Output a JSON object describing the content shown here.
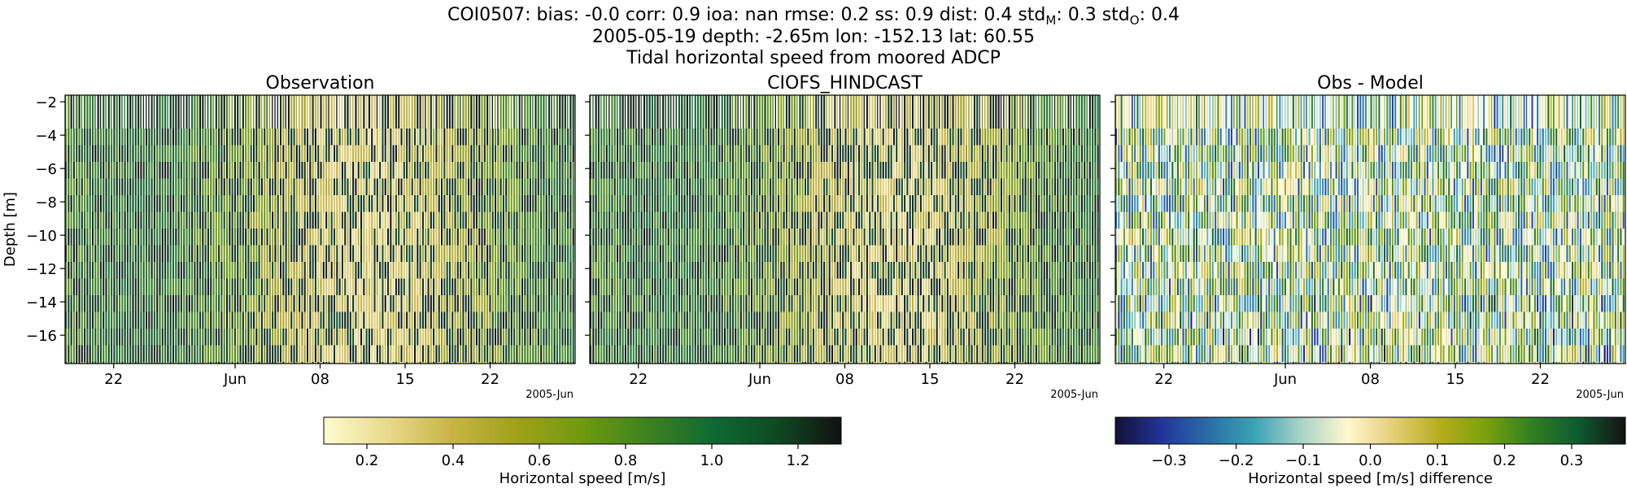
{
  "header": {
    "line1": [
      {
        "t": "COI0507: bias: -0.0  corr: 0.9  ioa: nan  rmse: 0.2  ss: 0.9  dist: 0.4  std"
      },
      {
        "t": "M",
        "sub": true
      },
      {
        "t": ": 0.3  std"
      },
      {
        "t": "O",
        "sub": true
      },
      {
        "t": ": 0.4"
      }
    ],
    "line2": "2005-05-19 depth: -2.65m lon: -152.13 lat: 60.55",
    "line3": "Tidal horizontal speed from moored ADCP"
  },
  "chart_data": [
    {
      "type": "heatmap",
      "title": "Observation",
      "ylabel": "Depth [m]",
      "ylim": [
        -17.7,
        -1.6
      ],
      "yticks": [
        -2,
        -4,
        -6,
        -8,
        -10,
        -12,
        -14,
        -16
      ],
      "xlim": [
        "2005-05-18",
        "2005-06-29"
      ],
      "xticks": [
        {
          "date": "2005-05-22",
          "label": "22"
        },
        {
          "date": "2005-06-01",
          "label": "Jun"
        },
        {
          "date": "2005-06-08",
          "label": "08"
        },
        {
          "date": "2005-06-15",
          "label": "15"
        },
        {
          "date": "2005-06-22",
          "label": "22"
        }
      ],
      "xoffset_label": "2005-Jun",
      "colormap": "speed",
      "value_range": [
        0.1,
        1.3
      ]
    },
    {
      "type": "heatmap",
      "title": "CIOFS_HINDCAST",
      "ylim": [
        -17.7,
        -1.6
      ],
      "yticks": [
        -2,
        -4,
        -6,
        -8,
        -10,
        -12,
        -14,
        -16
      ],
      "xlim": [
        "2005-05-18",
        "2005-06-29"
      ],
      "xticks": [
        {
          "date": "2005-05-22",
          "label": "22"
        },
        {
          "date": "2005-06-01",
          "label": "Jun"
        },
        {
          "date": "2005-06-08",
          "label": "08"
        },
        {
          "date": "2005-06-15",
          "label": "15"
        },
        {
          "date": "2005-06-22",
          "label": "22"
        }
      ],
      "xoffset_label": "2005-Jun",
      "colormap": "speed",
      "value_range": [
        0.1,
        1.3
      ]
    },
    {
      "type": "heatmap",
      "title": "Obs - Model",
      "ylim": [
        -17.7,
        -1.6
      ],
      "yticks": [
        -2,
        -4,
        -6,
        -8,
        -10,
        -12,
        -14,
        -16
      ],
      "xlim": [
        "2005-05-18",
        "2005-06-29"
      ],
      "xticks": [
        {
          "date": "2005-05-22",
          "label": "22"
        },
        {
          "date": "2005-06-01",
          "label": "Jun"
        },
        {
          "date": "2005-06-08",
          "label": "08"
        },
        {
          "date": "2005-06-15",
          "label": "15"
        },
        {
          "date": "2005-06-22",
          "label": "22"
        }
      ],
      "xoffset_label": "2005-Jun",
      "colormap": "difference",
      "value_range": [
        -0.38,
        0.38
      ]
    }
  ],
  "colorbars": [
    {
      "label": "Horizontal speed [m/s]",
      "range": [
        0.1,
        1.3
      ],
      "ticks": [
        {
          "v": 0.2,
          "l": "0.2"
        },
        {
          "v": 0.4,
          "l": "0.4"
        },
        {
          "v": 0.6,
          "l": "0.6"
        },
        {
          "v": 0.8,
          "l": "0.8"
        },
        {
          "v": 1.0,
          "l": "1.0"
        },
        {
          "v": 1.2,
          "l": "1.2"
        }
      ],
      "colormap": "speed"
    },
    {
      "label": "Horizontal speed [m/s] difference",
      "range": [
        -0.38,
        0.38
      ],
      "ticks": [
        {
          "v": -0.3,
          "l": "−0.3"
        },
        {
          "v": -0.2,
          "l": "−0.2"
        },
        {
          "v": -0.1,
          "l": "−0.1"
        },
        {
          "v": 0.0,
          "l": "0.0"
        },
        {
          "v": 0.1,
          "l": "0.1"
        },
        {
          "v": 0.2,
          "l": "0.2"
        },
        {
          "v": 0.3,
          "l": "0.3"
        }
      ],
      "colormap": "difference"
    }
  ],
  "colormaps": {
    "speed": [
      "#fefccf",
      "#e8d98a",
      "#c8b444",
      "#a0a01a",
      "#6f9a10",
      "#3d821e",
      "#0f6a32",
      "#0e4a22",
      "#111111"
    ],
    "difference": [
      "#111133",
      "#23349a",
      "#2a6da8",
      "#3aa3b5",
      "#a8d3c8",
      "#fff7d0",
      "#e5cf77",
      "#b6ad1d",
      "#79a10b",
      "#2f7f22",
      "#0d5a30",
      "#131313"
    ]
  }
}
